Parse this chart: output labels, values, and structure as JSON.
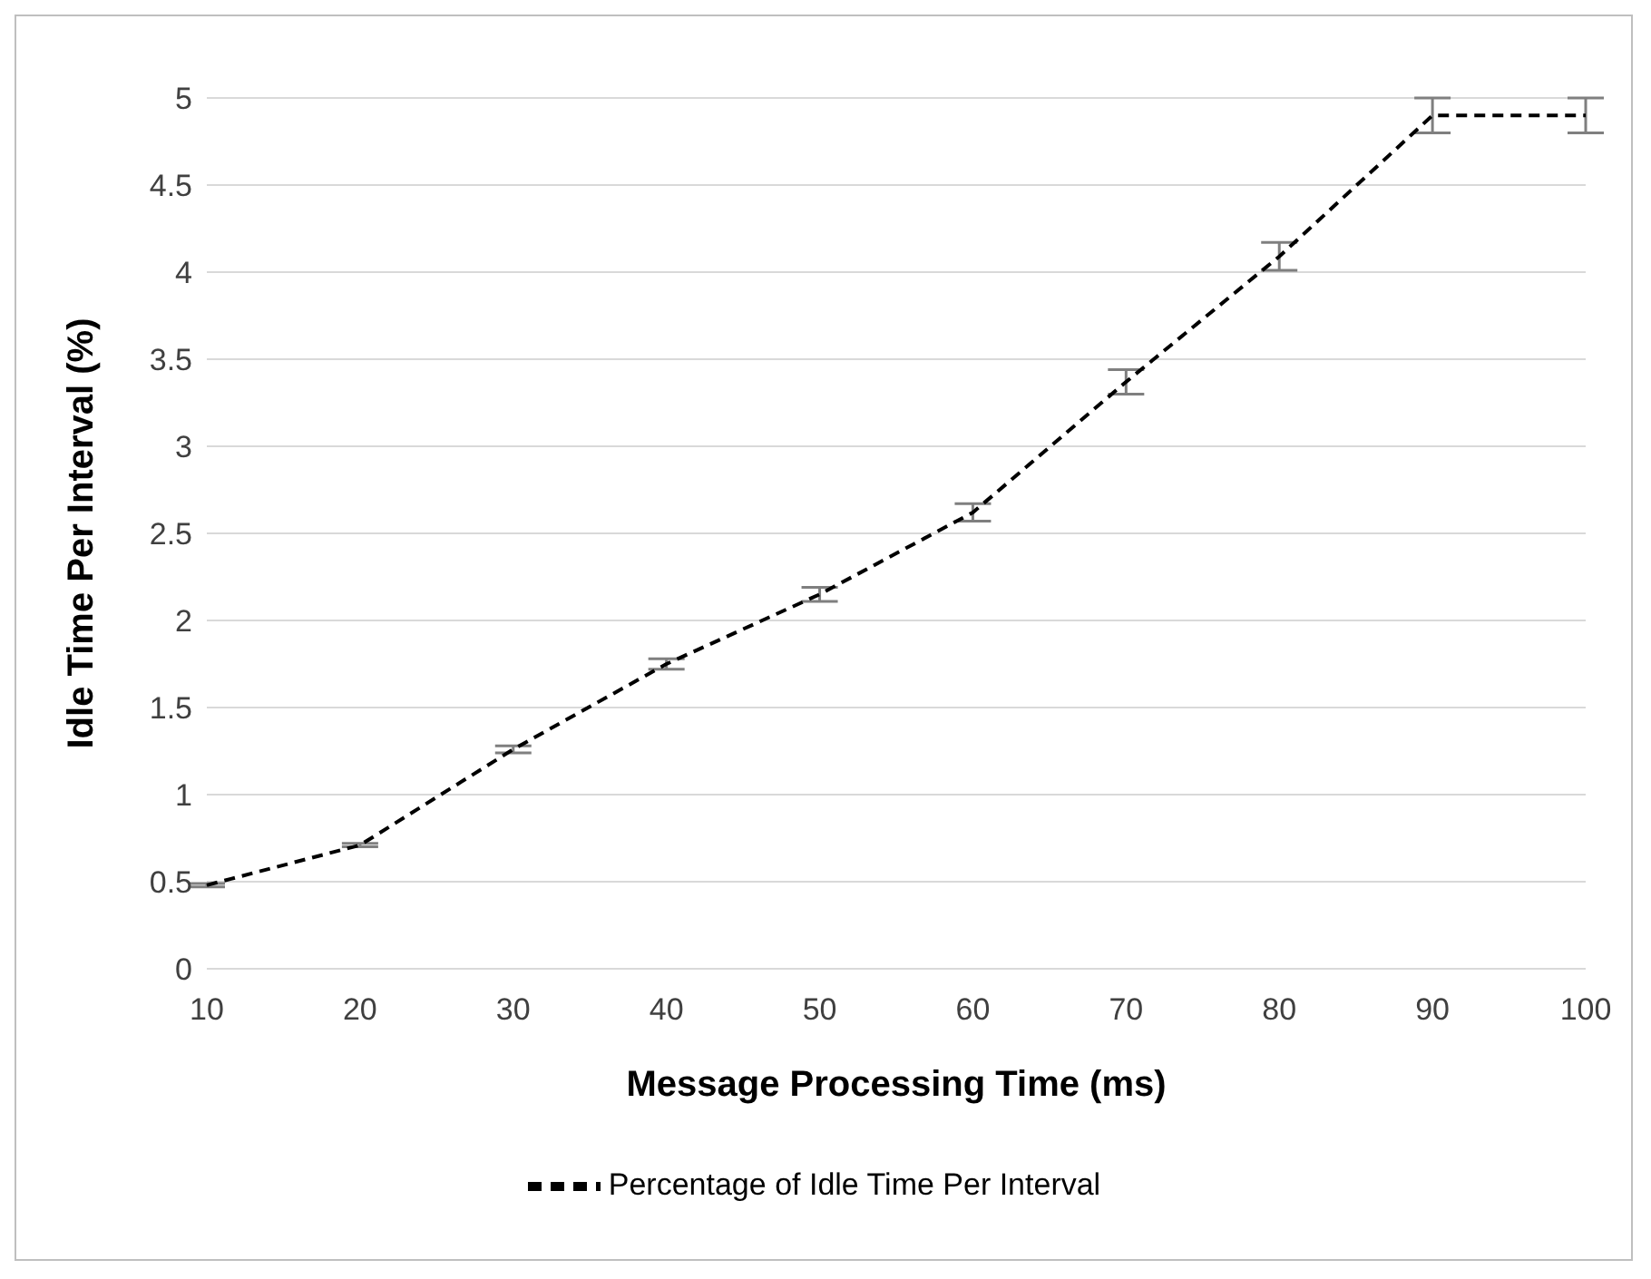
{
  "chart_data": {
    "type": "line",
    "xlabel": "Message Processing Time (ms)",
    "ylabel": "Idle Time Per Interval  (%)",
    "categories": [
      "10",
      "20",
      "30",
      "40",
      "50",
      "60",
      "70",
      "80",
      "90",
      "100"
    ],
    "series": [
      {
        "name": "Percentage of Idle Time Per Interval",
        "color": "#000000",
        "values": [
          0.48,
          0.71,
          1.26,
          1.75,
          2.15,
          2.62,
          3.37,
          4.09,
          4.9,
          4.9
        ],
        "errors": [
          0.01,
          0.01,
          0.02,
          0.03,
          0.04,
          0.05,
          0.07,
          0.08,
          0.1,
          0.1
        ]
      }
    ],
    "ylim": [
      0,
      5
    ],
    "yticks": [
      0,
      0.5,
      1,
      1.5,
      2,
      2.5,
      3,
      3.5,
      4,
      4.5,
      5
    ],
    "grid": "y",
    "legend": "bottom",
    "marker": "none",
    "line_style": "dashed"
  }
}
